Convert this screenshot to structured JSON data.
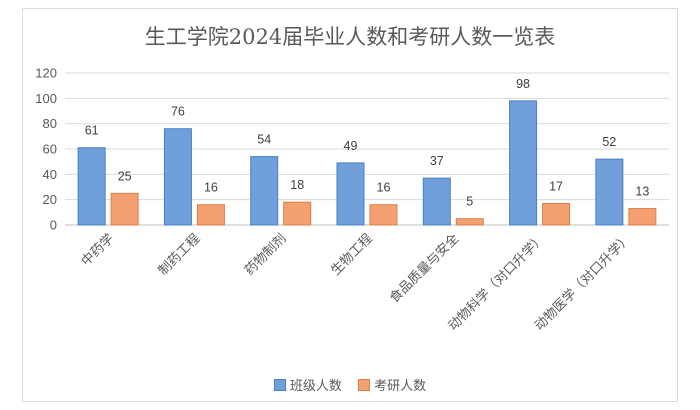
{
  "chart_data": {
    "type": "bar",
    "title": "生工学院2024届毕业人数和考研人数一览表",
    "categories": [
      "中药学",
      "制药工程",
      "药物制剂",
      "生物工程",
      "食品质量与安全",
      "动物科学（对口升学）",
      "动物医学（对口升学）"
    ],
    "series": [
      {
        "name": "班级人数",
        "values": [
          61,
          76,
          54,
          49,
          37,
          98,
          52
        ],
        "color": "#6fa0dc"
      },
      {
        "name": "考研人数",
        "values": [
          25,
          16,
          18,
          16,
          5,
          17,
          13
        ],
        "color": "#f4a070"
      }
    ],
    "ylim": [
      0,
      120
    ],
    "yticks": [
      0,
      20,
      40,
      60,
      80,
      100,
      120
    ],
    "grid": true,
    "legend": "bottom"
  }
}
